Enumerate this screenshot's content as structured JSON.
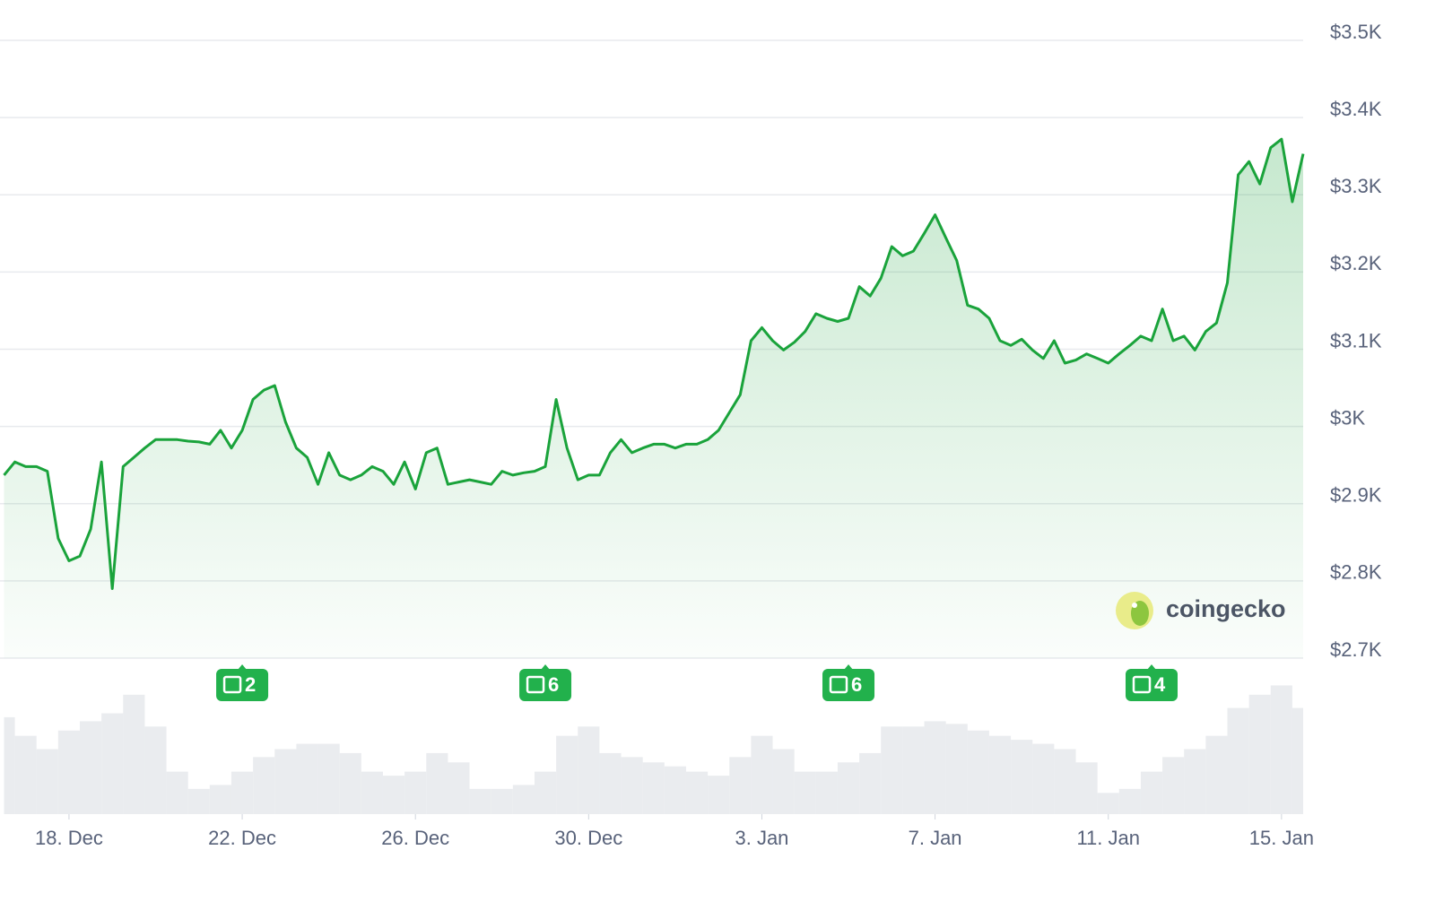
{
  "chart_data": {
    "type": "line",
    "categories": [
      null,
      null,
      null,
      null,
      null,
      null,
      "18. Dec",
      null,
      null,
      null,
      null,
      null,
      null,
      null,
      null,
      null,
      null,
      null,
      null,
      null,
      null,
      null,
      "22. Dec",
      null,
      null,
      null,
      null,
      null,
      null,
      null,
      null,
      null,
      null,
      null,
      null,
      null,
      null,
      null,
      "26. Dec",
      null,
      null,
      null,
      null,
      null,
      null,
      null,
      null,
      null,
      null,
      null,
      null,
      null,
      null,
      null,
      "30. Dec",
      null,
      null,
      null,
      null,
      null,
      null,
      null,
      null,
      null,
      null,
      null,
      null,
      null,
      null,
      null,
      "3. Jan",
      null,
      null,
      null,
      null,
      null,
      null,
      null,
      null,
      null,
      null,
      null,
      null,
      null,
      null,
      null,
      "7. Jan",
      null,
      null,
      null,
      null,
      null,
      null,
      null,
      null,
      null,
      null,
      null,
      null,
      null,
      null,
      null,
      "11. Jan",
      null,
      null,
      null,
      null,
      null,
      null,
      null,
      null,
      null,
      null,
      null,
      null,
      null,
      null,
      null,
      "15. Jan",
      null,
      null
    ],
    "values": [
      2937,
      2954,
      2948,
      2948,
      2942,
      2855,
      2826,
      2832,
      2867,
      2954,
      2790,
      2948,
      2960,
      2972,
      2983,
      2983,
      2983,
      2981,
      2980,
      2977,
      2995,
      2972,
      2995,
      3035,
      3047,
      3053,
      3006,
      2972,
      2960,
      2925,
      2966,
      2937,
      2931,
      2937,
      2948,
      2942,
      2925,
      2954,
      2919,
      2966,
      2972,
      2925,
      2928,
      2931,
      2928,
      2925,
      2942,
      2937,
      2940,
      2942,
      2948,
      3035,
      2972,
      2931,
      2937,
      2937,
      2966,
      2983,
      2966,
      2972,
      2977,
      2977,
      2972,
      2977,
      2977,
      2983,
      2995,
      3018,
      3041,
      3111,
      3128,
      3111,
      3099,
      3109,
      3123,
      3146,
      3140,
      3136,
      3140,
      3181,
      3169,
      3192,
      3233,
      3221,
      3227,
      3250,
      3274,
      3244,
      3215,
      3157,
      3152,
      3140,
      3111,
      3105,
      3113,
      3099,
      3088,
      3111,
      3082,
      3086,
      3094,
      3088,
      3082,
      3094,
      3105,
      3117,
      3111,
      3152,
      3111,
      3117,
      3099,
      3123,
      3134,
      3186,
      3326,
      3343,
      3314,
      3361,
      3372,
      3291,
      3353
    ],
    "color": "#1aa33b",
    "ylim": [
      2700,
      3500
    ],
    "yticks": [
      {
        "value": 2700,
        "label": "$2.7K"
      },
      {
        "value": 2800,
        "label": "$2.8K"
      },
      {
        "value": 2900,
        "label": "$2.9K"
      },
      {
        "value": 3000,
        "label": "$3K"
      },
      {
        "value": 3100,
        "label": "$3.1K"
      },
      {
        "value": 3200,
        "label": "$3.2K"
      },
      {
        "value": 3300,
        "label": "$3.3K"
      },
      {
        "value": 3400,
        "label": "$3.4K"
      },
      {
        "value": 3500,
        "label": "$3.5K"
      }
    ],
    "grid": true,
    "volume": {
      "values": [
        73,
        59,
        49,
        63,
        70,
        76,
        90,
        66,
        32,
        19,
        22,
        32,
        43,
        49,
        53,
        53,
        46,
        32,
        29,
        32,
        46,
        39,
        19,
        19,
        22,
        32,
        59,
        66,
        46,
        43,
        39,
        36,
        32,
        29,
        43,
        59,
        49,
        32,
        32,
        39,
        46,
        66,
        66,
        70,
        68,
        63,
        59,
        56,
        53,
        49,
        39,
        16,
        19,
        32,
        43,
        49,
        59,
        80,
        90,
        97,
        80
      ],
      "ylim": [
        0,
        100
      ],
      "color": "#e3e5ea"
    },
    "news": [
      2,
      6,
      6,
      4
    ],
    "watermark": "coingecko"
  }
}
